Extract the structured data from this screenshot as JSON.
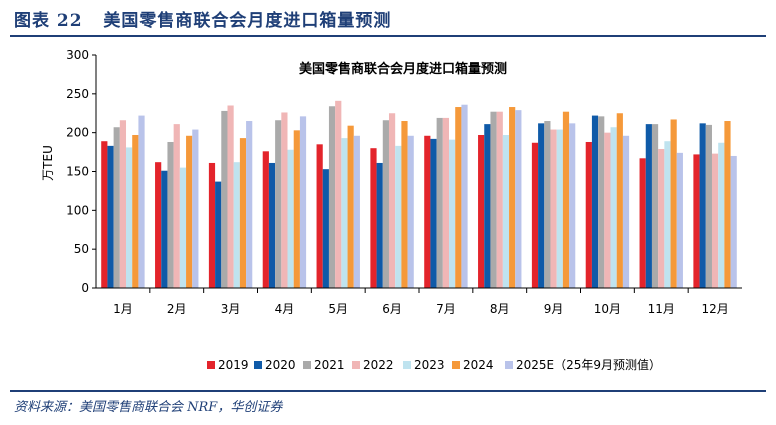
{
  "figure": {
    "label": "图表 22",
    "title": "美国零售商联合会月度进口箱量预测",
    "source": "资料来源：美国零售商联合会 NRF，华创证券"
  },
  "colors": {
    "frame_text": "#1f3f77",
    "series": [
      "#e3242b",
      "#0f5aa8",
      "#aaaaaa",
      "#f0b6b6",
      "#bfe3ef",
      "#f5993a",
      "#b9c3ea"
    ]
  },
  "chart_data": {
    "type": "bar",
    "title": "美国零售商联合会月度进口箱量预测",
    "xlabel": "",
    "ylabel": "万TEU",
    "ylim": [
      0,
      300
    ],
    "yticks": [
      0,
      50,
      100,
      150,
      200,
      250,
      300
    ],
    "legend_position": "bottom",
    "grid": false,
    "categories": [
      "1月",
      "2月",
      "3月",
      "4月",
      "5月",
      "6月",
      "7月",
      "8月",
      "9月",
      "10月",
      "11月",
      "12月"
    ],
    "series": [
      {
        "name": "2019",
        "color": "#e3242b",
        "values": [
          189,
          162,
          161,
          176,
          185,
          180,
          196,
          197,
          187,
          188,
          167,
          172
        ]
      },
      {
        "name": "2020",
        "color": "#0f5aa8",
        "values": [
          183,
          151,
          137,
          161,
          153,
          161,
          192,
          211,
          212,
          222,
          211,
          212
        ]
      },
      {
        "name": "2021",
        "color": "#aaaaaa",
        "values": [
          207,
          188,
          228,
          216,
          234,
          216,
          219,
          227,
          215,
          221,
          211,
          210
        ]
      },
      {
        "name": "2022",
        "color": "#f0b6b6",
        "values": [
          216,
          211,
          235,
          226,
          241,
          225,
          219,
          227,
          204,
          200,
          179,
          173
        ]
      },
      {
        "name": "2023",
        "color": "#bfe3ef",
        "values": [
          181,
          155,
          162,
          178,
          193,
          183,
          191,
          197,
          204,
          207,
          189,
          187
        ]
      },
      {
        "name": "2024",
        "color": "#f5993a",
        "values": [
          197,
          196,
          193,
          203,
          209,
          215,
          233,
          233,
          227,
          225,
          217,
          215
        ]
      },
      {
        "name": "2025E（25年9月预测值）",
        "color": "#b9c3ea",
        "values": [
          222,
          204,
          215,
          221,
          196,
          196,
          236,
          229,
          212,
          196,
          174,
          170
        ]
      }
    ]
  }
}
